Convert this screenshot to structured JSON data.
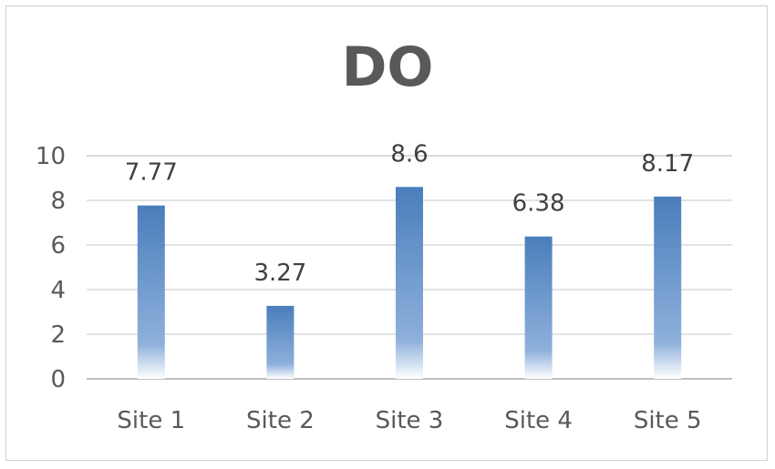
{
  "chart_data": {
    "type": "bar",
    "title": "DO",
    "categories": [
      "Site 1",
      "Site 2",
      "Site 3",
      "Site 4",
      "Site 5"
    ],
    "values": [
      7.77,
      3.27,
      8.6,
      6.38,
      8.17
    ],
    "data_labels": [
      "7.77",
      "3.27",
      "8.6",
      "6.38",
      "8.17"
    ],
    "yticks": [
      "0",
      "2",
      "4",
      "6",
      "8",
      "10"
    ],
    "ylim": [
      0,
      10
    ],
    "grid": true,
    "legend": "none",
    "colors": {
      "bar_top": "#4a7ebb",
      "bar_mid": "#8eb0dc",
      "bar_bottom": "#ffffff",
      "grid": "#d9d9d9",
      "axis": "#bfbfbf",
      "text": "#595959"
    }
  }
}
